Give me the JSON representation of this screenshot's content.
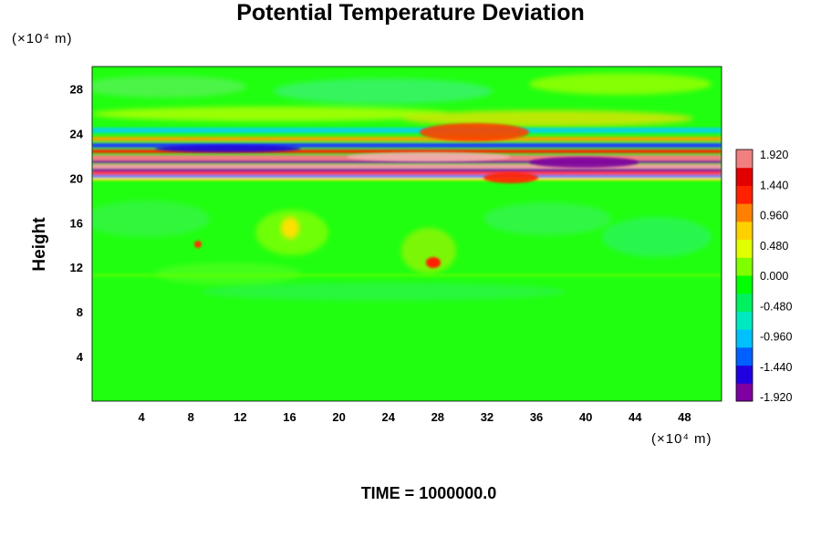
{
  "chart_data": {
    "type": "heatmap",
    "title": "Potential Temperature Deviation",
    "ylabel": "Height",
    "xlabel": "",
    "x_unit": "(×10⁴ m)",
    "y_unit": "(×10⁴ m)",
    "xlim": [
      0,
      51
    ],
    "ylim": [
      0,
      30
    ],
    "x_ticks": [
      4,
      8,
      12,
      16,
      20,
      24,
      28,
      32,
      36,
      40,
      44,
      48
    ],
    "y_ticks": [
      4,
      8,
      12,
      16,
      20,
      24,
      28
    ],
    "colorbar": {
      "min": -1.92,
      "max": 1.92,
      "labels": [
        "1.920",
        "1.440",
        "0.960",
        "0.480",
        "0.000",
        "-0.480",
        "-0.960",
        "-1.440",
        "-1.920"
      ],
      "colors": [
        "#7f00a0",
        "#2000e0",
        "#0060ff",
        "#00c0ff",
        "#00e8c0",
        "#00f060",
        "#00ff00",
        "#80ff00",
        "#e0ff00",
        "#ffd000",
        "#ff8000",
        "#ff2000",
        "#e00000",
        "#f08080"
      ]
    },
    "annotation": "TIME = 1000000.0"
  }
}
